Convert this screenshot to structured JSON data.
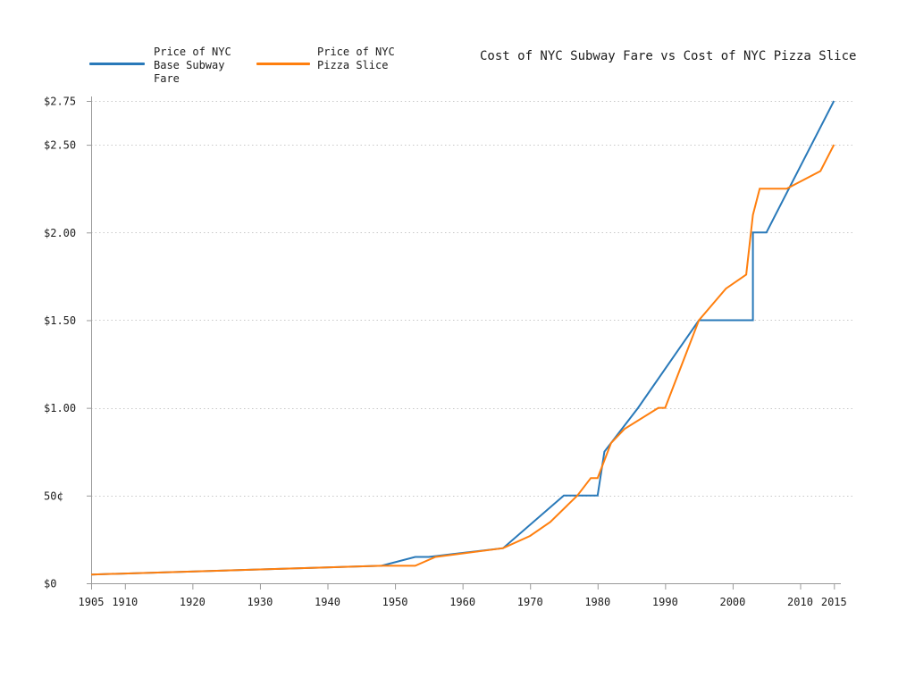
{
  "title": "Cost of NYC Subway Fare vs Cost of NYC Pizza Slice",
  "legend": {
    "position": "top-left",
    "items": [
      {
        "series": "subway",
        "lines": [
          "Price of NYC",
          "Base Subway",
          "Fare"
        ]
      },
      {
        "series": "pizza",
        "lines": [
          "Price of NYC",
          "Pizza Slice"
        ]
      }
    ]
  },
  "colors": {
    "subway_line": "#2979b9",
    "pizza_line": "#ff7f0e",
    "grid": "#c8c8c8",
    "axis": "#999999",
    "text": "#1c1c1c"
  },
  "chart_data": {
    "type": "line",
    "title": "Cost of NYC Subway Fare vs Cost of NYC Pizza Slice",
    "xlabel": "",
    "ylabel": "",
    "x_range": [
      1905,
      2015
    ],
    "y_range": [
      0,
      2.75
    ],
    "grid": "horizontal dotted",
    "legend_position": "top-left outside plot",
    "x_axis": {
      "tick_values": [
        1905,
        1910,
        1920,
        1930,
        1940,
        1950,
        1960,
        1970,
        1980,
        1990,
        2000,
        2010,
        2015
      ],
      "tick_labels": [
        "1905",
        "1910",
        "1920",
        "1930",
        "1940",
        "1950",
        "1960",
        "1970",
        "1980",
        "1990",
        "2000",
        "2010",
        "2015"
      ]
    },
    "y_axis": {
      "tick_values": [
        0,
        0.5,
        1.0,
        1.5,
        2.0,
        2.5,
        2.75
      ],
      "tick_labels": [
        "$0",
        "50¢",
        "$1.00",
        "$1.50",
        "$2.00",
        "$2.50",
        "$2.75"
      ]
    },
    "series": [
      {
        "name": "Price of NYC Base Subway Fare",
        "color": "#2979b9",
        "points": [
          [
            1905,
            0.05
          ],
          [
            1948,
            0.1
          ],
          [
            1953,
            0.15
          ],
          [
            1955,
            0.15
          ],
          [
            1966,
            0.2
          ],
          [
            1975,
            0.5
          ],
          [
            1980,
            0.5
          ],
          [
            1981,
            0.75
          ],
          [
            1986,
            1.0
          ],
          [
            1995,
            1.5
          ],
          [
            2003,
            1.5
          ],
          [
            2003,
            2.0
          ],
          [
            2005,
            2.0
          ],
          [
            2015,
            2.75
          ]
        ]
      },
      {
        "name": "Price of NYC Pizza Slice",
        "color": "#ff7f0e",
        "points": [
          [
            1905,
            0.05
          ],
          [
            1948,
            0.1
          ],
          [
            1953,
            0.1
          ],
          [
            1956,
            0.15
          ],
          [
            1966,
            0.2
          ],
          [
            1970,
            0.27
          ],
          [
            1973,
            0.35
          ],
          [
            1977,
            0.5
          ],
          [
            1979,
            0.6
          ],
          [
            1980,
            0.6
          ],
          [
            1982,
            0.8
          ],
          [
            1984,
            0.88
          ],
          [
            1989,
            1.0
          ],
          [
            1990,
            1.0
          ],
          [
            1995,
            1.5
          ],
          [
            1999,
            1.68
          ],
          [
            2002,
            1.76
          ],
          [
            2003,
            2.1
          ],
          [
            2004,
            2.25
          ],
          [
            2008,
            2.25
          ],
          [
            2013,
            2.35
          ],
          [
            2015,
            2.5
          ]
        ]
      }
    ]
  }
}
